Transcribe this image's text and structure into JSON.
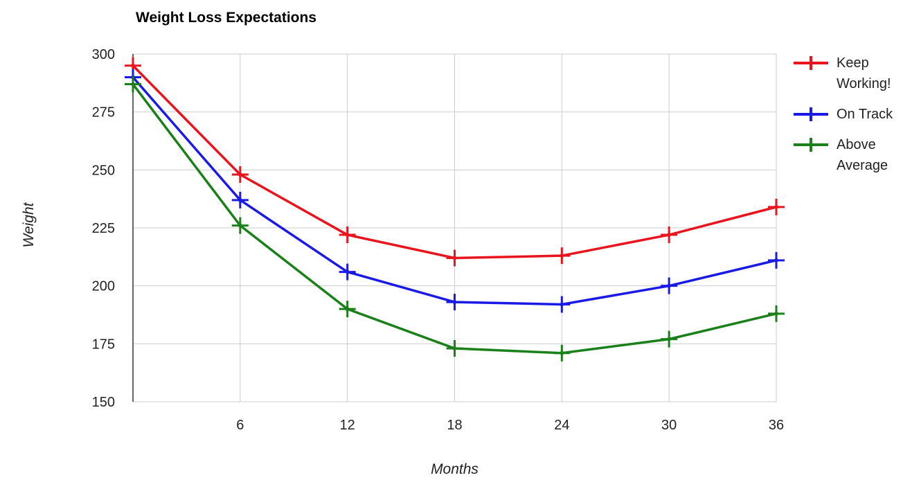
{
  "chart_data": {
    "type": "line",
    "title": "Weight Loss Expectations",
    "xlabel": "Months",
    "ylabel": "Weight",
    "x": [
      0,
      6,
      12,
      18,
      24,
      30,
      36
    ],
    "x_ticks": [
      "6",
      "12",
      "18",
      "24",
      "30",
      "36"
    ],
    "y_ticks": [
      "150",
      "175",
      "200",
      "225",
      "250",
      "275",
      "300"
    ],
    "xlim": [
      0,
      36
    ],
    "ylim": [
      150,
      300
    ],
    "grid": true,
    "legend_position": "right",
    "series": [
      {
        "name": "Keep Working!",
        "color": "#e8141e",
        "values": [
          295,
          248,
          222,
          212,
          213,
          222,
          234
        ]
      },
      {
        "name": "On Track",
        "color": "#1a1ae6",
        "values": [
          290,
          237,
          206,
          193,
          192,
          200,
          211
        ]
      },
      {
        "name": "Above Average",
        "color": "#1a801a",
        "values": [
          287,
          226,
          190,
          173,
          171,
          177,
          188
        ]
      }
    ]
  }
}
